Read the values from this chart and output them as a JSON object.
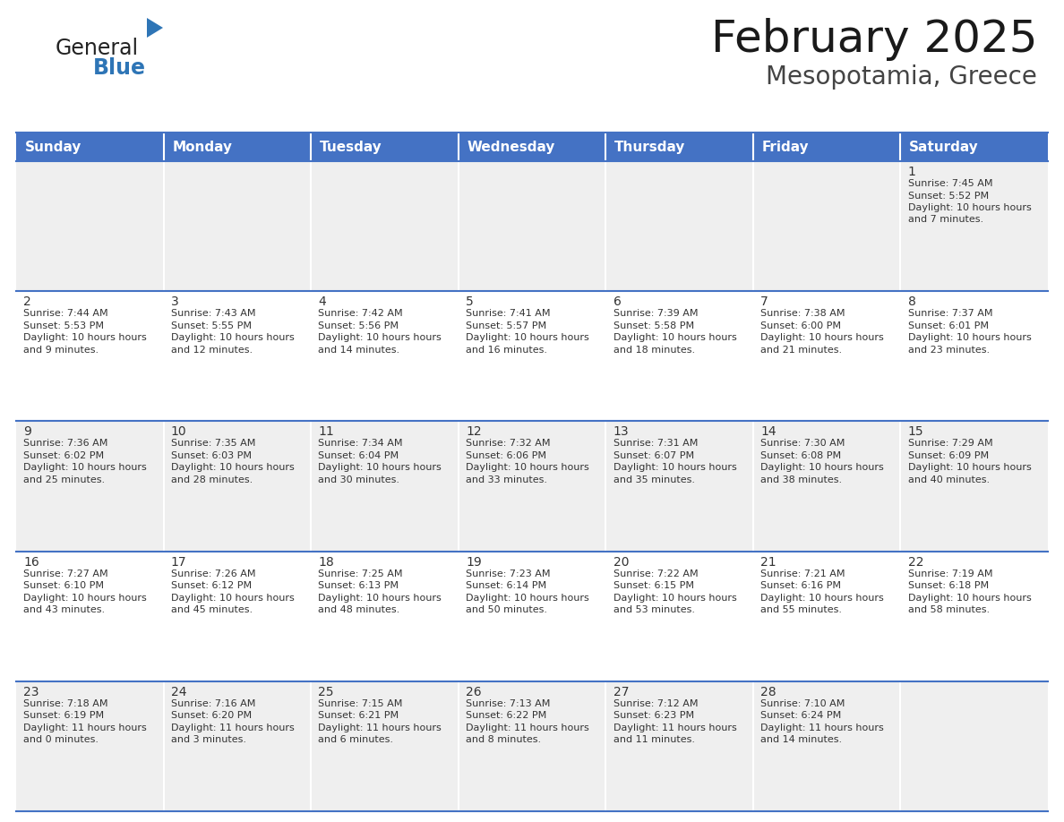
{
  "title": "February 2025",
  "subtitle": "Mesopotamia, Greece",
  "header_bg": "#4472C4",
  "header_text_color": "#FFFFFF",
  "header_days": [
    "Sunday",
    "Monday",
    "Tuesday",
    "Wednesday",
    "Thursday",
    "Friday",
    "Saturday"
  ],
  "cell_bg_even": "#EFEFEF",
  "cell_bg_odd": "#FFFFFF",
  "cell_text_color": "#333333",
  "day_number_color": "#333333",
  "grid_line_color": "#4472C4",
  "week_row_bg": [
    "#EFEFEF",
    "#FFFFFF",
    "#EFEFEF",
    "#FFFFFF",
    "#EFEFEF"
  ],
  "calendar_data": [
    [
      null,
      null,
      null,
      null,
      null,
      null,
      {
        "day": 1,
        "sunrise": "7:45 AM",
        "sunset": "5:52 PM",
        "daylight": "10 hours and 7 minutes."
      }
    ],
    [
      {
        "day": 2,
        "sunrise": "7:44 AM",
        "sunset": "5:53 PM",
        "daylight": "10 hours and 9 minutes."
      },
      {
        "day": 3,
        "sunrise": "7:43 AM",
        "sunset": "5:55 PM",
        "daylight": "10 hours and 12 minutes."
      },
      {
        "day": 4,
        "sunrise": "7:42 AM",
        "sunset": "5:56 PM",
        "daylight": "10 hours and 14 minutes."
      },
      {
        "day": 5,
        "sunrise": "7:41 AM",
        "sunset": "5:57 PM",
        "daylight": "10 hours and 16 minutes."
      },
      {
        "day": 6,
        "sunrise": "7:39 AM",
        "sunset": "5:58 PM",
        "daylight": "10 hours and 18 minutes."
      },
      {
        "day": 7,
        "sunrise": "7:38 AM",
        "sunset": "6:00 PM",
        "daylight": "10 hours and 21 minutes."
      },
      {
        "day": 8,
        "sunrise": "7:37 AM",
        "sunset": "6:01 PM",
        "daylight": "10 hours and 23 minutes."
      }
    ],
    [
      {
        "day": 9,
        "sunrise": "7:36 AM",
        "sunset": "6:02 PM",
        "daylight": "10 hours and 25 minutes."
      },
      {
        "day": 10,
        "sunrise": "7:35 AM",
        "sunset": "6:03 PM",
        "daylight": "10 hours and 28 minutes."
      },
      {
        "day": 11,
        "sunrise": "7:34 AM",
        "sunset": "6:04 PM",
        "daylight": "10 hours and 30 minutes."
      },
      {
        "day": 12,
        "sunrise": "7:32 AM",
        "sunset": "6:06 PM",
        "daylight": "10 hours and 33 minutes."
      },
      {
        "day": 13,
        "sunrise": "7:31 AM",
        "sunset": "6:07 PM",
        "daylight": "10 hours and 35 minutes."
      },
      {
        "day": 14,
        "sunrise": "7:30 AM",
        "sunset": "6:08 PM",
        "daylight": "10 hours and 38 minutes."
      },
      {
        "day": 15,
        "sunrise": "7:29 AM",
        "sunset": "6:09 PM",
        "daylight": "10 hours and 40 minutes."
      }
    ],
    [
      {
        "day": 16,
        "sunrise": "7:27 AM",
        "sunset": "6:10 PM",
        "daylight": "10 hours and 43 minutes."
      },
      {
        "day": 17,
        "sunrise": "7:26 AM",
        "sunset": "6:12 PM",
        "daylight": "10 hours and 45 minutes."
      },
      {
        "day": 18,
        "sunrise": "7:25 AM",
        "sunset": "6:13 PM",
        "daylight": "10 hours and 48 minutes."
      },
      {
        "day": 19,
        "sunrise": "7:23 AM",
        "sunset": "6:14 PM",
        "daylight": "10 hours and 50 minutes."
      },
      {
        "day": 20,
        "sunrise": "7:22 AM",
        "sunset": "6:15 PM",
        "daylight": "10 hours and 53 minutes."
      },
      {
        "day": 21,
        "sunrise": "7:21 AM",
        "sunset": "6:16 PM",
        "daylight": "10 hours and 55 minutes."
      },
      {
        "day": 22,
        "sunrise": "7:19 AM",
        "sunset": "6:18 PM",
        "daylight": "10 hours and 58 minutes."
      }
    ],
    [
      {
        "day": 23,
        "sunrise": "7:18 AM",
        "sunset": "6:19 PM",
        "daylight": "11 hours and 0 minutes."
      },
      {
        "day": 24,
        "sunrise": "7:16 AM",
        "sunset": "6:20 PM",
        "daylight": "11 hours and 3 minutes."
      },
      {
        "day": 25,
        "sunrise": "7:15 AM",
        "sunset": "6:21 PM",
        "daylight": "11 hours and 6 minutes."
      },
      {
        "day": 26,
        "sunrise": "7:13 AM",
        "sunset": "6:22 PM",
        "daylight": "11 hours and 8 minutes."
      },
      {
        "day": 27,
        "sunrise": "7:12 AM",
        "sunset": "6:23 PM",
        "daylight": "11 hours and 11 minutes."
      },
      {
        "day": 28,
        "sunrise": "7:10 AM",
        "sunset": "6:24 PM",
        "daylight": "11 hours and 14 minutes."
      },
      null
    ]
  ],
  "logo_text1": "General",
  "logo_text2": "Blue",
  "logo_color1": "#222222",
  "logo_color2": "#2E75B6",
  "logo_triangle_color": "#2E75B6",
  "title_fontsize": 36,
  "subtitle_fontsize": 20,
  "header_fontsize": 11,
  "day_num_fontsize": 10,
  "cell_text_fontsize": 8
}
